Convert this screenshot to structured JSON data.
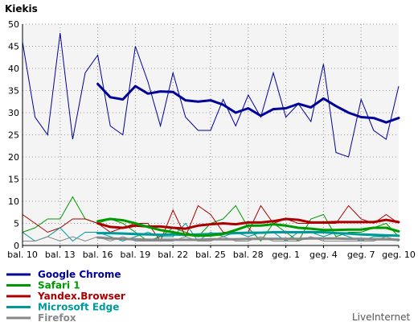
{
  "chart_data": {
    "type": "line",
    "title": "Kiekis",
    "credit": "LiveInternet",
    "ylim": [
      0,
      50
    ],
    "yticks": [
      0,
      5,
      10,
      15,
      20,
      25,
      30,
      35,
      40,
      45,
      50
    ],
    "grid": true,
    "legend_position": "bottom-left",
    "x": [
      "bal. 10",
      "bal. 11",
      "bal. 12",
      "bal. 13",
      "bal. 14",
      "bal. 15",
      "bal. 16",
      "bal. 17",
      "bal. 18",
      "bal. 19",
      "bal. 20",
      "bal. 21",
      "bal. 22",
      "bal. 23",
      "bal. 24",
      "bal. 25",
      "bal. 26",
      "bal. 27",
      "bal. 28",
      "bal. 29",
      "bal. 30",
      "geg. 1",
      "geg. 2",
      "geg. 3",
      "geg. 4",
      "geg. 5",
      "geg. 6",
      "geg. 7",
      "geg. 8",
      "geg. 9",
      "geg. 10"
    ],
    "xtick_labels": [
      "bal. 10",
      "bal. 13",
      "bal. 16",
      "bal. 19",
      "bal. 22",
      "bal. 25",
      "bal. 28",
      "geg. 1",
      "geg. 4",
      "geg. 7",
      "geg. 10"
    ],
    "series": [
      {
        "name": "Google Chrome",
        "color": "#000099",
        "daily": [
          46,
          29,
          25,
          48,
          24,
          39,
          43,
          27,
          25,
          45,
          37,
          27,
          39,
          29,
          26,
          26,
          33,
          27,
          34,
          29,
          39,
          29,
          32,
          28,
          41,
          21,
          20,
          33,
          26,
          24,
          36
        ],
        "trend_start": 6,
        "trend": [
          36.5,
          33.5,
          33,
          36,
          34.3,
          34.8,
          34.7,
          32.8,
          32.5,
          32.8,
          31.8,
          30,
          31,
          29.3,
          30.8,
          31,
          32,
          31.2,
          33.2,
          31.5,
          30,
          29,
          28.8,
          27.8,
          28.8
        ]
      },
      {
        "name": "Safari 1",
        "color": "#009900",
        "daily": [
          3,
          4,
          6,
          6,
          11,
          6,
          5,
          6,
          5,
          3,
          1,
          2,
          4,
          3,
          2,
          5,
          6,
          9,
          4,
          1,
          5,
          3,
          1,
          6,
          7,
          2,
          3,
          3,
          4,
          5,
          2
        ],
        "trend_start": 6,
        "trend": [
          5.5,
          6,
          5.7,
          5,
          4.2,
          3.5,
          3,
          2.5,
          2.2,
          2.3,
          2.6,
          3.5,
          4.5,
          4.5,
          4.8,
          4.5,
          4,
          3.8,
          3.5,
          3.5,
          3.6,
          3.6,
          4,
          4,
          3.2
        ]
      },
      {
        "name": "Yandex.Browser",
        "color": "#aa0000",
        "daily": [
          7,
          5,
          3,
          4,
          6,
          6,
          5,
          3,
          4,
          5,
          5,
          1,
          8,
          2,
          9,
          7,
          3,
          3,
          3,
          9,
          5,
          6,
          5,
          5,
          5,
          5,
          9,
          6,
          5,
          7,
          5
        ],
        "trend_start": 6,
        "trend": [
          5,
          4.2,
          4,
          4.5,
          4.3,
          4.3,
          4,
          3.8,
          4.5,
          4.8,
          5,
          4.8,
          5.2,
          5.2,
          5.5,
          6,
          5.8,
          5.2,
          5.2,
          5.3,
          5.3,
          5.3,
          5.3,
          5.8,
          5.3
        ]
      },
      {
        "name": "Microsoft Edge",
        "color": "#009999",
        "daily": [
          3,
          1,
          2,
          4,
          1,
          3,
          3,
          2,
          1,
          2,
          3,
          2,
          2,
          5,
          1,
          3,
          2,
          3,
          2,
          3,
          3,
          1,
          3,
          3,
          2,
          3,
          2,
          1,
          2,
          2,
          1
        ],
        "trend_start": 6,
        "trend": [
          2.8,
          2.8,
          2.7,
          2.6,
          2.5,
          2.4,
          2.5,
          2.4,
          2.5,
          2.6,
          2.7,
          2.8,
          2.9,
          2.9,
          3,
          3,
          3,
          3,
          3,
          2.8,
          2.7,
          2.5,
          2.4,
          2.3,
          2.2
        ]
      },
      {
        "name": "Firefox",
        "color": "#888888",
        "daily": [
          1,
          1,
          2,
          1,
          2,
          1,
          2,
          1,
          2,
          1,
          1,
          1,
          1,
          2,
          1,
          1,
          2,
          1,
          1,
          2,
          1,
          1,
          1,
          2,
          1,
          1,
          1,
          1,
          1,
          2,
          1
        ],
        "trend_start": 6,
        "trend": [
          1.8,
          1.6,
          1.5,
          1.4,
          1.3,
          1.3,
          1.3,
          1.3,
          1.3,
          1.4,
          1.4,
          1.4,
          1.5,
          1.5,
          1.5,
          1.5,
          1.5,
          1.6,
          1.6,
          1.6,
          1.5,
          1.5,
          1.4,
          1.4,
          1.3
        ]
      }
    ]
  }
}
